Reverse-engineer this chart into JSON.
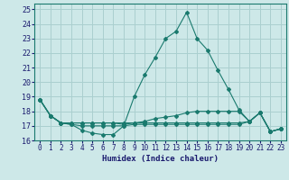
{
  "xlabel": "Humidex (Indice chaleur)",
  "xlim": [
    -0.5,
    23.5
  ],
  "ylim": [
    16,
    25.4
  ],
  "yticks": [
    16,
    17,
    18,
    19,
    20,
    21,
    22,
    23,
    24,
    25
  ],
  "xticks": [
    0,
    1,
    2,
    3,
    4,
    5,
    6,
    7,
    8,
    9,
    10,
    11,
    12,
    13,
    14,
    15,
    16,
    17,
    18,
    19,
    20,
    21,
    22,
    23
  ],
  "background_color": "#cde8e8",
  "grid_color": "#aacfcf",
  "line_color": "#1a7a6e",
  "lines": [
    [
      18.8,
      17.7,
      17.2,
      17.1,
      16.7,
      16.5,
      16.4,
      16.4,
      17.0,
      19.0,
      20.5,
      21.7,
      23.0,
      23.5,
      24.8,
      23.0,
      22.2,
      20.8,
      19.5,
      18.1,
      17.3,
      17.9,
      16.6,
      16.8
    ],
    [
      18.8,
      17.7,
      17.2,
      17.2,
      17.2,
      17.2,
      17.2,
      17.2,
      17.1,
      17.2,
      17.3,
      17.5,
      17.6,
      17.7,
      17.9,
      18.0,
      18.0,
      18.0,
      18.0,
      18.0,
      17.3,
      17.9,
      16.6,
      16.8
    ],
    [
      18.8,
      17.7,
      17.2,
      17.1,
      17.0,
      17.0,
      17.0,
      17.0,
      17.0,
      17.1,
      17.1,
      17.1,
      17.1,
      17.1,
      17.1,
      17.1,
      17.1,
      17.1,
      17.1,
      17.1,
      17.3,
      17.9,
      16.6,
      16.8
    ],
    [
      18.8,
      17.7,
      17.2,
      17.2,
      17.2,
      17.2,
      17.2,
      17.2,
      17.2,
      17.2,
      17.2,
      17.2,
      17.2,
      17.2,
      17.2,
      17.2,
      17.2,
      17.2,
      17.2,
      17.2,
      17.3,
      17.9,
      16.6,
      16.8
    ]
  ]
}
